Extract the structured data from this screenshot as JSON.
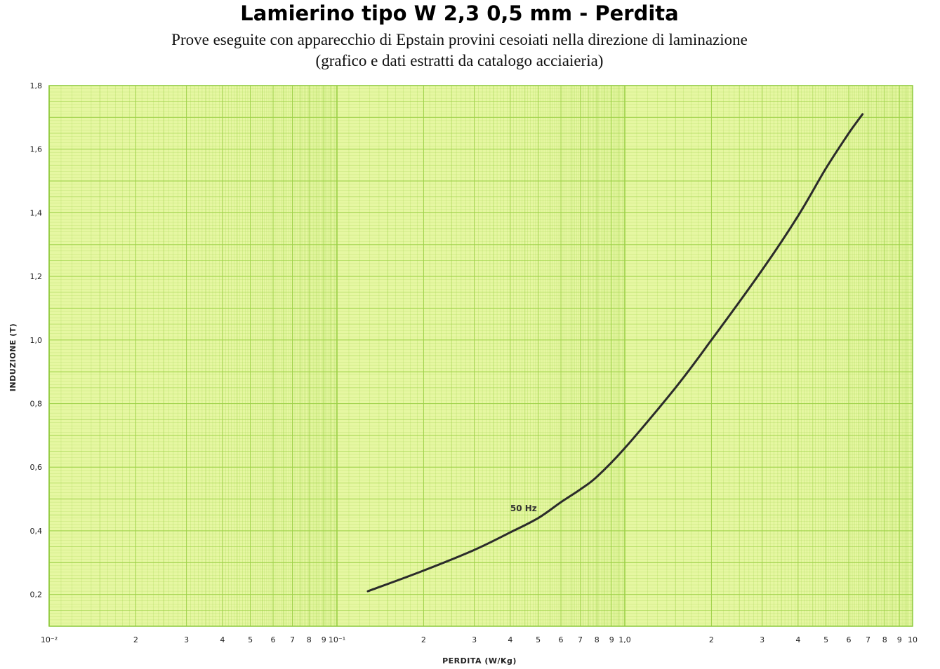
{
  "chart_data": {
    "type": "line",
    "title": "Lamierino tipo W 2,3 0,5 mm - Perdita",
    "subtitle": [
      "Prove eseguite con apparecchio di Epstain provini cesoiati nella direzione di laminazione",
      "(grafico e dati estratti da catalogo acciaieria)"
    ],
    "xlabel": "PERDITA (W/Kg)",
    "ylabel": "INDUZIONE (T)",
    "xscale": "log",
    "xlim": [
      0.01,
      10
    ],
    "ylim": [
      0.1,
      1.8
    ],
    "grid": true,
    "colors": {
      "paper": "#e6f7a2",
      "grid": "#9bd046",
      "curve": "#2b2b2b"
    },
    "x_ticks": [
      {
        "value": 0.01,
        "label": "10⁻²"
      },
      {
        "value": 0.02,
        "label": "2"
      },
      {
        "value": 0.03,
        "label": "3"
      },
      {
        "value": 0.04,
        "label": "4"
      },
      {
        "value": 0.05,
        "label": "5"
      },
      {
        "value": 0.06,
        "label": "6"
      },
      {
        "value": 0.07,
        "label": "7"
      },
      {
        "value": 0.08,
        "label": "8"
      },
      {
        "value": 0.09,
        "label": "9"
      },
      {
        "value": 0.1,
        "label": "10⁻¹"
      },
      {
        "value": 0.2,
        "label": "2"
      },
      {
        "value": 0.3,
        "label": "3"
      },
      {
        "value": 0.4,
        "label": "4"
      },
      {
        "value": 0.5,
        "label": "5"
      },
      {
        "value": 0.6,
        "label": "6"
      },
      {
        "value": 0.7,
        "label": "7"
      },
      {
        "value": 0.8,
        "label": "8"
      },
      {
        "value": 0.9,
        "label": "9"
      },
      {
        "value": 1.0,
        "label": "1,0"
      },
      {
        "value": 2,
        "label": "2"
      },
      {
        "value": 3,
        "label": "3"
      },
      {
        "value": 4,
        "label": "4"
      },
      {
        "value": 5,
        "label": "5"
      },
      {
        "value": 6,
        "label": "6"
      },
      {
        "value": 7,
        "label": "7"
      },
      {
        "value": 8,
        "label": "8"
      },
      {
        "value": 9,
        "label": "9"
      },
      {
        "value": 10,
        "label": "10"
      }
    ],
    "y_ticks": [
      {
        "value": 0.2,
        "label": "0,2"
      },
      {
        "value": 0.4,
        "label": "0,4"
      },
      {
        "value": 0.6,
        "label": "0,6"
      },
      {
        "value": 0.8,
        "label": "0,8"
      },
      {
        "value": 1.0,
        "label": "1,0"
      },
      {
        "value": 1.2,
        "label": "1,2"
      },
      {
        "value": 1.4,
        "label": "1,4"
      },
      {
        "value": 1.6,
        "label": "1,6"
      },
      {
        "value": 1.8,
        "label": "1,8"
      }
    ],
    "series": [
      {
        "name": "50 Hz",
        "x": [
          0.128,
          0.2,
          0.3,
          0.4,
          0.5,
          0.6,
          0.7,
          0.8,
          1.0,
          1.5,
          2.0,
          3.0,
          4.0,
          5.0,
          6.0,
          6.7
        ],
        "y": [
          0.21,
          0.275,
          0.34,
          0.395,
          0.44,
          0.49,
          0.53,
          0.57,
          0.66,
          0.85,
          1.0,
          1.22,
          1.39,
          1.54,
          1.65,
          1.71
        ]
      }
    ],
    "annotations": [
      {
        "text": "50 Hz",
        "x": 0.4,
        "y": 0.47
      }
    ]
  }
}
